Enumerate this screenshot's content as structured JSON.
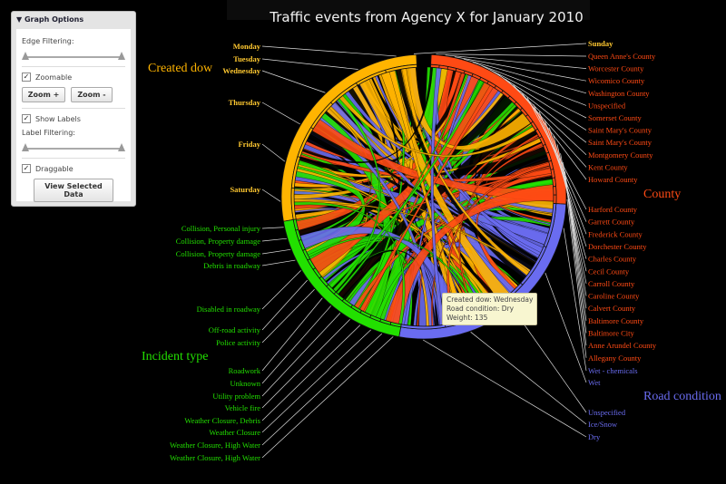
{
  "title": "Traffic events from Agency X for January 2010",
  "panel": {
    "header": "Graph Options",
    "edge_filtering_label": "Edge Filtering:",
    "zoomable_label": "Zoomable",
    "zoomable_checked": true,
    "zoom_in_label": "Zoom +",
    "zoom_out_label": "Zoom -",
    "show_labels_label": "Show Labels",
    "show_labels_checked": true,
    "label_filtering_label": "Label Filtering:",
    "draggable_label": "Draggable",
    "draggable_checked": true,
    "view_selected_label": "View Selected Data"
  },
  "tooltip": {
    "line1": "Created dow: Wednesday",
    "line2": "Road condition: Dry",
    "line3": "Weight: 135"
  },
  "groups": [
    {
      "name": "Created dow",
      "color": "#ffb400",
      "labels": [
        "Sunday",
        "Monday",
        "Tuesday",
        "Wednesday",
        "Thursday",
        "Friday",
        "Saturday"
      ]
    },
    {
      "name": "County",
      "color": "#ff4a14",
      "labels": [
        "Queen Anne's County",
        "Worcester County",
        "Wicomico County",
        "Washington County",
        "Unspecified",
        "Somerset County",
        "Saint Mary's County",
        "Saint Mary's County",
        "Montgomery County",
        "Kent County",
        "Howard County",
        "Harford County",
        "Garrett County",
        "Frederick County",
        "Dorchester County",
        "Charles County",
        "Cecil County",
        "Carroll County",
        "Caroline County",
        "Calvert County",
        "Baltimore County",
        "Baltimore City",
        "Anne Arundel County",
        "Allegany County"
      ]
    },
    {
      "name": "Road condition",
      "color": "#6a6cf0",
      "labels": [
        "Wet - chemicals",
        "Wet",
        "Unspecified",
        "Ice/Snow",
        "Dry"
      ]
    },
    {
      "name": "Incident type",
      "color": "#22e000",
      "labels": [
        "Collision, Personal injury",
        "Collision, Property damage",
        "Collision, Property damage",
        "Debris in roadway",
        "Disabled in roadway",
        "Off-road activity",
        "Police activity",
        "Roadwork",
        "Unknown",
        "Utility problem",
        "Vehicle fire",
        "Weather Closure, Debris",
        "Weather Closure",
        "Weather Closure, High Water",
        "Weather Closure, High Water"
      ]
    }
  ]
}
